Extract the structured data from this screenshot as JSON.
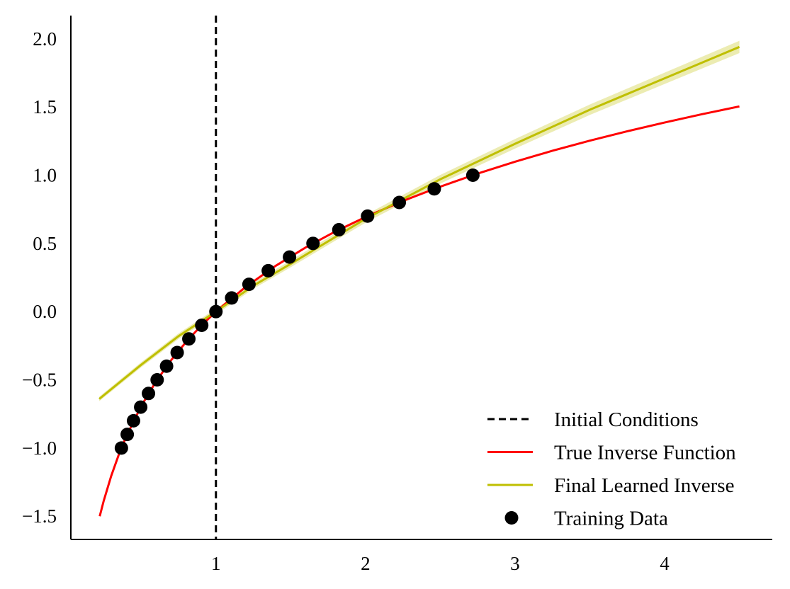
{
  "chart_data": {
    "type": "line",
    "title": "",
    "xlabel": "",
    "ylabel": "",
    "xlim": [
      0.03,
      4.72
    ],
    "ylim": [
      -1.67,
      2.17
    ],
    "xticks": [
      1,
      2,
      3,
      4
    ],
    "xtick_labels": [
      "1",
      "2",
      "3",
      "4"
    ],
    "yticks": [
      -1.5,
      -1.0,
      -0.5,
      0.0,
      0.5,
      1.0,
      1.5,
      2.0
    ],
    "ytick_labels": [
      "−1.5",
      "−1.0",
      "−0.5",
      "0.0",
      "0.5",
      "1.0",
      "1.5",
      "2.0"
    ],
    "grid": false,
    "legend_position": "bottom-right",
    "initial_conditions": {
      "name": "Initial Conditions",
      "x": 1.0,
      "color": "#000000",
      "style": "dashed"
    },
    "series": [
      {
        "name": "True Inverse Function",
        "color": "#ff0000",
        "x": [
          0.223,
          0.25,
          0.3,
          0.35,
          0.4,
          0.5,
          0.6,
          0.7,
          0.8,
          0.9,
          1.0,
          1.2,
          1.4,
          1.6,
          1.8,
          2.0,
          2.25,
          2.5,
          2.75,
          3.0,
          3.25,
          3.5,
          3.75,
          4.0,
          4.25,
          4.5
        ],
        "values": [
          -1.5,
          -1.386,
          -1.204,
          -1.05,
          -0.916,
          -0.693,
          -0.511,
          -0.357,
          -0.223,
          -0.105,
          0.0,
          0.182,
          0.336,
          0.47,
          0.588,
          0.693,
          0.811,
          0.916,
          1.012,
          1.099,
          1.179,
          1.253,
          1.322,
          1.386,
          1.447,
          1.504
        ]
      },
      {
        "name": "Final Learned Inverse",
        "color": "#bfbf00",
        "x": [
          0.22,
          0.5,
          0.75,
          1.0,
          1.25,
          1.5,
          2.0,
          2.5,
          3.0,
          3.5,
          4.0,
          4.5
        ],
        "values": [
          -0.64,
          -0.39,
          -0.18,
          0.0,
          0.19,
          0.35,
          0.68,
          0.97,
          1.23,
          1.48,
          1.71,
          1.94
        ],
        "band": 0.03
      }
    ],
    "training_data": {
      "name": "Training Data",
      "color": "#000000",
      "x": [
        0.368,
        0.407,
        0.449,
        0.497,
        0.549,
        0.607,
        0.67,
        0.741,
        0.819,
        0.905,
        1.0,
        1.105,
        1.221,
        1.35,
        1.492,
        1.649,
        1.822,
        2.014,
        2.226,
        2.46,
        2.718
      ],
      "values": [
        -1.0,
        -0.9,
        -0.8,
        -0.7,
        -0.6,
        -0.5,
        -0.4,
        -0.3,
        -0.2,
        -0.1,
        0.0,
        0.1,
        0.2,
        0.3,
        0.4,
        0.5,
        0.6,
        0.7,
        0.8,
        0.9,
        1.0
      ]
    }
  }
}
